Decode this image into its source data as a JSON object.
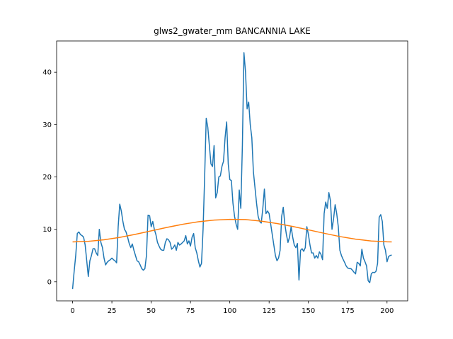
{
  "chart_data": {
    "type": "line",
    "title": "glws2_gwater_mm BANCANNIA LAKE",
    "x": [
      0,
      1,
      2,
      3,
      4,
      5,
      6,
      7,
      8,
      9,
      10,
      11,
      12,
      13,
      14,
      15,
      16,
      17,
      18,
      19,
      20,
      21,
      22,
      23,
      24,
      25,
      26,
      27,
      28,
      29,
      30,
      31,
      32,
      33,
      34,
      35,
      36,
      37,
      38,
      39,
      40,
      41,
      42,
      43,
      44,
      45,
      46,
      47,
      48,
      49,
      50,
      51,
      52,
      53,
      54,
      55,
      56,
      57,
      58,
      59,
      60,
      61,
      62,
      63,
      64,
      65,
      66,
      67,
      68,
      69,
      70,
      71,
      72,
      73,
      74,
      75,
      76,
      77,
      78,
      79,
      80,
      81,
      82,
      83,
      84,
      85,
      86,
      87,
      88,
      89,
      90,
      91,
      92,
      93,
      94,
      95,
      96,
      97,
      98,
      99,
      100,
      101,
      102,
      103,
      104,
      105,
      106,
      107,
      108,
      109,
      110,
      111,
      112,
      113,
      114,
      115,
      116,
      117,
      118,
      119,
      120,
      121,
      122,
      123,
      124,
      125,
      126,
      127,
      128,
      129,
      130,
      131,
      132,
      133,
      134,
      135,
      136,
      137,
      138,
      139,
      140,
      141,
      142,
      143,
      144,
      145,
      146,
      147,
      148,
      149,
      150,
      151,
      152,
      153,
      154,
      155,
      156,
      157,
      158,
      159,
      160,
      161,
      162,
      163,
      164,
      165,
      166,
      167,
      168,
      169,
      170,
      171,
      172,
      173,
      174,
      175,
      176,
      177,
      178,
      179,
      180,
      181,
      182,
      183,
      184,
      185,
      186,
      187,
      188,
      189,
      190,
      191,
      192,
      193,
      194,
      195,
      196,
      197,
      198,
      199,
      200,
      201,
      202,
      203
    ],
    "series": [
      {
        "color": "#1f77b4",
        "values": [
          -1.4,
          2,
          5,
          9.2,
          9.5,
          9,
          8.8,
          8.5,
          7,
          4,
          1,
          4,
          5,
          6.3,
          6.3,
          5.5,
          5,
          10,
          7.5,
          6.5,
          4.5,
          3.2,
          3.7,
          4,
          4.2,
          4.5,
          4.2,
          4,
          3.6,
          10.5,
          14.8,
          13.5,
          11.5,
          10,
          9.5,
          8.5,
          7.3,
          6.5,
          7.2,
          6,
          5,
          4,
          3.8,
          3.2,
          2.5,
          2.2,
          2.5,
          5,
          12.7,
          12.6,
          10.5,
          11.5,
          10,
          9,
          7.5,
          6.8,
          6.2,
          6,
          6,
          7.5,
          8.2,
          8,
          7.5,
          6.2,
          6.5,
          7,
          6,
          7.5,
          7,
          7.2,
          7.5,
          7.8,
          8.8,
          7.2,
          7.8,
          6.8,
          8.5,
          9.2,
          6.5,
          5.5,
          4,
          2.8,
          3.5,
          10,
          20,
          31.2,
          29.5,
          26,
          22.5,
          22,
          26,
          16,
          17,
          20,
          20.2,
          22,
          23,
          27.5,
          30.5,
          22.5,
          19.5,
          19.3,
          15,
          12.5,
          11,
          10,
          17.5,
          14,
          26,
          43.7,
          40,
          33,
          34.3,
          30,
          27.5,
          21,
          18,
          15,
          12.5,
          11.5,
          11.2,
          14,
          17.7,
          13,
          13.5,
          13,
          11,
          9,
          7,
          5,
          4,
          4.5,
          6,
          12.5,
          14.2,
          11,
          9,
          7.5,
          8.5,
          10.5,
          8.5,
          7,
          6.5,
          7.3,
          0.3,
          6,
          6.3,
          5.8,
          6.5,
          10.5,
          9,
          7,
          5.5,
          5.5,
          4.5,
          5,
          4.5,
          5.7,
          5.2,
          4.2,
          13,
          15.2,
          14,
          17,
          15.5,
          10,
          12,
          14.7,
          13,
          10.5,
          6,
          5,
          4.3,
          3.7,
          3,
          2.6,
          2.5,
          2.5,
          2.2,
          1.8,
          1.5,
          3.7,
          3.5,
          3,
          6.2,
          4.5,
          3.8,
          3,
          0.2,
          -0.2,
          1.5,
          1.8,
          1.7,
          2,
          3.5,
          12.3,
          12.8,
          11.5,
          7,
          6,
          3.8,
          4.8,
          5,
          5.1
        ]
      },
      {
        "color": "#ff7f0e",
        "x": [
          0,
          10,
          20,
          30,
          40,
          50,
          60,
          70,
          80,
          90,
          100,
          110,
          120,
          130,
          140,
          150,
          160,
          170,
          180,
          190,
          200,
          203
        ],
        "values": [
          7.6,
          7.7,
          8.0,
          8.46,
          9.05,
          9.7,
          10.36,
          10.96,
          11.44,
          11.76,
          11.9,
          11.87,
          11.56,
          11.11,
          10.55,
          9.9,
          9.24,
          8.62,
          8.12,
          7.77,
          7.61,
          7.6
        ]
      }
    ],
    "xlim": [
      -10.15,
      213.15
    ],
    "ylim": [
      -3.66,
      45.96
    ],
    "xticks": [
      0,
      25,
      50,
      75,
      100,
      125,
      150,
      175,
      200
    ],
    "yticks": [
      0,
      10,
      20,
      30,
      40
    ]
  }
}
